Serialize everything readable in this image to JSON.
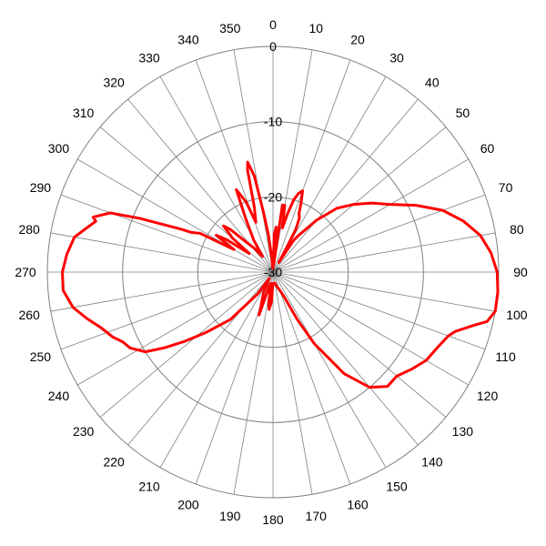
{
  "chart_data": {
    "type": "line",
    "subtype": "polar",
    "angle_direction": "clockwise",
    "zero_at": "top",
    "angle_ticks": [
      0,
      10,
      20,
      30,
      40,
      50,
      60,
      70,
      80,
      90,
      100,
      110,
      120,
      130,
      140,
      150,
      160,
      170,
      180,
      190,
      200,
      210,
      220,
      230,
      240,
      250,
      260,
      270,
      280,
      290,
      300,
      310,
      320,
      330,
      340,
      350
    ],
    "radial_range": [
      -30,
      0
    ],
    "radial_ticks": [
      {
        "value": 0,
        "label": "0"
      },
      {
        "value": -10,
        "label": "-10"
      },
      {
        "value": -20,
        "label": "-20"
      },
      {
        "value": -30,
        "label": "-30"
      }
    ],
    "grid": true,
    "colors": {
      "series": "#ff0000",
      "grid": "#808080"
    },
    "series": [
      {
        "points": [
          [
            0,
            -29.5
          ],
          [
            2,
            -25
          ],
          [
            4,
            -24
          ],
          [
            5,
            -29
          ],
          [
            8,
            -21
          ],
          [
            10,
            -21
          ],
          [
            12,
            -24
          ],
          [
            14,
            -22
          ],
          [
            16,
            -20
          ],
          [
            18,
            -19
          ],
          [
            20,
            -18.5
          ],
          [
            22,
            -20
          ],
          [
            24,
            -21.5
          ],
          [
            26,
            -22
          ],
          [
            28,
            -23.5
          ],
          [
            29,
            -26
          ],
          [
            31,
            -28.5
          ],
          [
            33,
            -25
          ],
          [
            35,
            -24
          ],
          [
            40,
            -21
          ],
          [
            45,
            -18
          ],
          [
            50,
            -16
          ],
          [
            55,
            -14
          ],
          [
            60,
            -12
          ],
          [
            65,
            -9
          ],
          [
            70,
            -6
          ],
          [
            75,
            -3.8
          ],
          [
            80,
            -2
          ],
          [
            85,
            -0.9
          ],
          [
            90,
            -0.2
          ],
          [
            95,
            0
          ],
          [
            100,
            0
          ],
          [
            103,
            -0.8
          ],
          [
            105,
            -2.5
          ],
          [
            108,
            -4.5
          ],
          [
            110,
            -5.2
          ],
          [
            115,
            -6
          ],
          [
            120,
            -6.5
          ],
          [
            125,
            -7.5
          ],
          [
            130,
            -8.5
          ],
          [
            135,
            -8.5
          ],
          [
            140,
            -10
          ],
          [
            145,
            -13.5
          ],
          [
            150,
            -19
          ],
          [
            153,
            -23
          ],
          [
            156,
            -26.5
          ],
          [
            160,
            -27.5
          ],
          [
            165,
            -28
          ],
          [
            170,
            -28.5
          ],
          [
            175,
            -28.5
          ],
          [
            180,
            -28.5
          ],
          [
            183,
            -26
          ],
          [
            186,
            -25
          ],
          [
            188,
            -26
          ],
          [
            190,
            -28.5
          ],
          [
            195,
            -28
          ],
          [
            198,
            -24
          ],
          [
            200,
            -25.5
          ],
          [
            205,
            -27
          ],
          [
            210,
            -29
          ],
          [
            215,
            -26.5
          ],
          [
            222,
            -21.5
          ],
          [
            228,
            -18
          ],
          [
            232,
            -15
          ],
          [
            235,
            -12.5
          ],
          [
            238,
            -10
          ],
          [
            242,
            -8.5
          ],
          [
            245,
            -8
          ],
          [
            248,
            -7
          ],
          [
            252,
            -6
          ],
          [
            256,
            -4.5
          ],
          [
            260,
            -3
          ],
          [
            265,
            -2
          ],
          [
            270,
            -2
          ],
          [
            275,
            -2.5
          ],
          [
            280,
            -3.2
          ],
          [
            284,
            -4.8
          ],
          [
            286,
            -5.5
          ],
          [
            287,
            -5
          ],
          [
            290,
            -7
          ],
          [
            292,
            -11
          ],
          [
            295,
            -16.5
          ],
          [
            296,
            -18
          ],
          [
            298,
            -19
          ],
          [
            300,
            -24
          ],
          [
            303,
            -21
          ],
          [
            305,
            -22.5
          ],
          [
            308,
            -26
          ],
          [
            310,
            -23
          ],
          [
            313,
            -21
          ],
          [
            315,
            -22
          ],
          [
            318,
            -24.5
          ],
          [
            322,
            -26
          ],
          [
            326,
            -27.5
          ],
          [
            329,
            -25
          ],
          [
            333,
            -22
          ],
          [
            336,
            -18
          ],
          [
            339,
            -20
          ],
          [
            341,
            -23
          ],
          [
            344,
            -21
          ],
          [
            346,
            -16
          ],
          [
            347,
            -15
          ],
          [
            349,
            -17
          ],
          [
            351,
            -22
          ],
          [
            353,
            -25
          ],
          [
            355,
            -28
          ],
          [
            358,
            -29.5
          ],
          [
            360,
            -29.5
          ]
        ]
      }
    ]
  }
}
